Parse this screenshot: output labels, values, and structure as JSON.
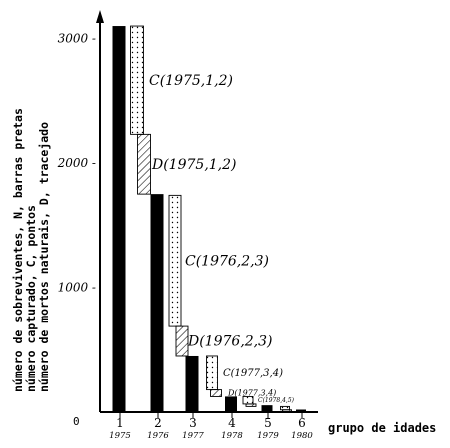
{
  "chart_data": {
    "type": "bar",
    "title": "",
    "ylabel_lines": [
      "número de sobreviventes, N, barras pretas",
      "número capturado, C, pontos",
      "número de mortos naturais, D, tracejado"
    ],
    "xlabel": "grupo de idades",
    "ylim": [
      0,
      3200
    ],
    "yticks": [
      {
        "value": 1000,
        "label": "1000 -"
      },
      {
        "value": 2000,
        "label": "2000 -"
      },
      {
        "value": 3000,
        "label": "3000 -"
      }
    ],
    "origin_label": "0",
    "categories": [
      {
        "age": "1",
        "year": "1975"
      },
      {
        "age": "2",
        "year": "1976"
      },
      {
        "age": "3",
        "year": "1977"
      },
      {
        "age": "4",
        "year": "1978"
      },
      {
        "age": "5",
        "year": "1979"
      },
      {
        "age": "6",
        "year": "1980"
      }
    ],
    "survivors_N": [
      3100,
      1750,
      450,
      125,
      55,
      20
    ],
    "captured_C": [
      {
        "from": 2230,
        "to": 3100,
        "label": "C(1975,1,2)"
      },
      {
        "from": 690,
        "to": 1740,
        "label": "C(1976,2,3)"
      },
      {
        "from": 180,
        "to": 450,
        "label": "C(1977,3,4)"
      },
      {
        "from": 65,
        "to": 125,
        "label": "C(1978,4,5)"
      },
      {
        "from": 18,
        "to": 45,
        "label": ""
      }
    ],
    "dead_D": [
      {
        "from": 1750,
        "to": 2230,
        "label": "D(1975,1,2)"
      },
      {
        "from": 450,
        "to": 690,
        "label": "D(1976,2,3)"
      },
      {
        "from": 125,
        "to": 180,
        "label": "D(1977,3,4)"
      },
      {
        "from": 45,
        "to": 65,
        "label": ""
      },
      {
        "from": 10,
        "to": 18,
        "label": ""
      }
    ],
    "colors": {
      "survivors": "#000000",
      "captured_fill": "#ffffff",
      "dead_hatch": "#000000"
    }
  }
}
